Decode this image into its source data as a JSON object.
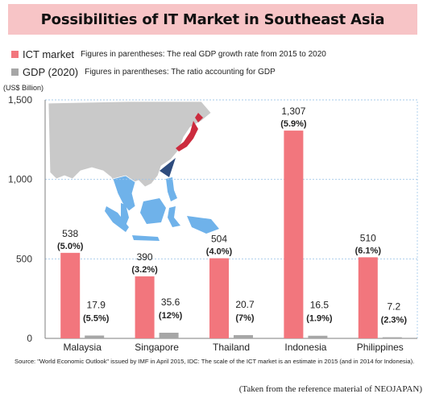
{
  "title": "Possibilities of IT Market in Southeast Asia",
  "legend": {
    "ict": {
      "label": "ICT market",
      "note": "Figures in parentheses: The real GDP growth rate from 2015 to 2020",
      "color": "#f2767d"
    },
    "gdp": {
      "label": "GDP (2020)",
      "note": "Figures in parentheses: The ratio accounting for GDP",
      "color": "#a6a6a6"
    }
  },
  "unit_label": "(US$ Billion)",
  "source": "Source:  \"World Economic Outlook\" issued by IMF in April 2015, IDC: The scale of the ICT market is an estimate in 2015 (and in 2014 for Indonesia).",
  "credit": "(Taken from the reference material of NEOJAPAN)",
  "chart_data": {
    "type": "bar",
    "ylim": [
      0,
      1500
    ],
    "yticks": [
      0,
      500,
      1000,
      1500
    ],
    "ytick_labels": [
      "0",
      "500",
      "1,000",
      "1,500"
    ],
    "grid": true,
    "categories": [
      "Malaysia",
      "Singapore",
      "Thailand",
      "Indonesia",
      "Philippines"
    ],
    "series": [
      {
        "name": "ICT market",
        "color": "#f2767d",
        "values": [
          538,
          390,
          504,
          1307,
          510
        ],
        "value_labels": [
          "538",
          "390",
          "504",
          "1,307",
          "510"
        ],
        "sub_labels": [
          "5.0%",
          "3.2%",
          "4.0%",
          "5.9%",
          "6.1%"
        ]
      },
      {
        "name": "GDP (2020)",
        "color": "#a6a6a6",
        "values": [
          17.9,
          35.6,
          20.7,
          16.5,
          7.2
        ],
        "value_labels": [
          "17.9",
          "35.6",
          "20.7",
          "16.5",
          "7.2"
        ],
        "sub_labels": [
          "5.5%",
          "12%",
          "7%",
          "1.9%",
          "2.3%"
        ]
      }
    ]
  }
}
